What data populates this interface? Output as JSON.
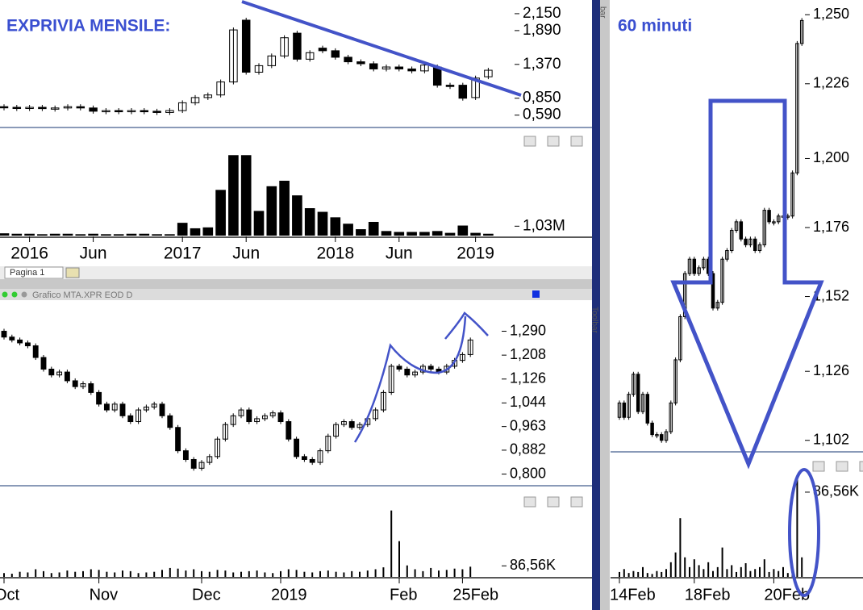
{
  "ui": {
    "tab": "Pagina 1",
    "toolbar_top": "bar",
    "toolbar_side": "Toolbar"
  },
  "chart_data": [
    {
      "type": "candlestick",
      "title": "EXPRIVIA MENSILE:",
      "open": [
        0.72,
        0.71,
        0.7,
        0.71,
        0.69,
        0.7,
        0.72,
        0.7,
        0.65,
        0.66,
        0.65,
        0.66,
        0.65,
        0.63,
        0.66,
        0.78,
        0.86,
        0.9,
        1.1,
        2.05,
        1.25,
        1.35,
        1.5,
        1.85,
        1.45,
        1.62,
        1.58,
        1.48,
        1.41,
        1.38,
        1.3,
        1.33,
        1.3,
        1.27,
        1.33,
        1.05,
        1.05,
        0.86,
        1.18
      ],
      "close": [
        0.71,
        0.7,
        0.71,
        0.69,
        0.7,
        0.72,
        0.7,
        0.65,
        0.66,
        0.65,
        0.66,
        0.65,
        0.63,
        0.66,
        0.78,
        0.86,
        0.9,
        1.1,
        1.9,
        1.25,
        1.35,
        1.5,
        1.78,
        1.45,
        1.55,
        1.58,
        1.48,
        1.41,
        1.38,
        1.3,
        1.33,
        1.3,
        1.27,
        1.36,
        1.05,
        1.03,
        0.85,
        1.16,
        1.28
      ],
      "ylim": [
        0.4,
        2.36
      ],
      "yticks": [
        {
          "value": 2.15,
          "label": "2,150"
        },
        {
          "value": 1.89,
          "label": "1,890"
        },
        {
          "value": 1.37,
          "label": "1,370"
        },
        {
          "value": 0.85,
          "label": "0,850"
        },
        {
          "value": 0.59,
          "label": "0,590"
        }
      ],
      "xticks": [
        {
          "value": 2,
          "label": "2016"
        },
        {
          "value": 7,
          "label": "Jun"
        },
        {
          "value": 14,
          "label": "2017"
        },
        {
          "value": 19,
          "label": "Jun"
        },
        {
          "value": 26,
          "label": "2018"
        },
        {
          "value": 31,
          "label": "Jun"
        },
        {
          "value": 37,
          "label": "2019"
        }
      ],
      "volume": {
        "values": [
          0.25,
          0.2,
          0.2,
          0.15,
          0.2,
          0.2,
          0.15,
          0.2,
          0.15,
          0.15,
          0.2,
          0.2,
          0.15,
          0.15,
          1.4,
          0.8,
          0.9,
          5.0,
          8.8,
          8.8,
          2.7,
          5.4,
          6.0,
          4.4,
          3.0,
          2.6,
          2.0,
          1.3,
          0.7,
          1.5,
          0.5,
          0.4,
          0.4,
          0.4,
          0.5,
          0.3,
          1.1,
          0.3,
          0.2
        ],
        "ylim": [
          0,
          9
        ],
        "yticks": [
          {
            "value": 1.03,
            "label": "1,03M"
          }
        ]
      }
    },
    {
      "type": "candlestick",
      "window_title": "Grafico MTA.XPR EOD D",
      "open": [
        1.29,
        1.27,
        1.26,
        1.25,
        1.24,
        1.2,
        1.16,
        1.14,
        1.15,
        1.12,
        1.1,
        1.11,
        1.08,
        1.04,
        1.02,
        1.04,
        1.0,
        0.98,
        1.02,
        1.03,
        1.04,
        1.0,
        0.96,
        0.88,
        0.85,
        0.82,
        0.84,
        0.86,
        0.92,
        0.97,
        1.0,
        1.02,
        0.98,
        0.99,
        1.0,
        1.01,
        0.98,
        0.92,
        0.86,
        0.85,
        0.84,
        0.88,
        0.93,
        0.97,
        0.98,
        0.96,
        0.97,
        0.99,
        1.02,
        1.08,
        1.17,
        1.16,
        1.14,
        1.15,
        1.17,
        1.16,
        1.15,
        1.17,
        1.19,
        1.21
      ],
      "close": [
        1.27,
        1.26,
        1.25,
        1.24,
        1.2,
        1.16,
        1.14,
        1.15,
        1.12,
        1.1,
        1.11,
        1.08,
        1.04,
        1.02,
        1.04,
        1.0,
        0.98,
        1.02,
        1.03,
        1.04,
        1.0,
        0.96,
        0.88,
        0.85,
        0.82,
        0.84,
        0.86,
        0.92,
        0.97,
        1.0,
        1.02,
        0.98,
        0.99,
        1.0,
        1.01,
        0.98,
        0.92,
        0.86,
        0.85,
        0.84,
        0.88,
        0.93,
        0.97,
        0.98,
        0.96,
        0.97,
        0.99,
        1.02,
        1.08,
        1.17,
        1.16,
        1.14,
        1.15,
        1.17,
        1.16,
        1.15,
        1.17,
        1.19,
        1.21,
        1.26
      ],
      "ylim": [
        0.76,
        1.38
      ],
      "yticks": [
        {
          "value": 1.29,
          "label": "1,290"
        },
        {
          "value": 1.208,
          "label": "1,208"
        },
        {
          "value": 1.126,
          "label": "1,126"
        },
        {
          "value": 1.044,
          "label": "1,044"
        },
        {
          "value": 0.963,
          "label": "0,963"
        },
        {
          "value": 0.882,
          "label": "0,882"
        },
        {
          "value": 0.8,
          "label": "0,800"
        }
      ],
      "xticks": [
        {
          "value": 0,
          "label": "Oct"
        },
        {
          "value": 12,
          "label": "Nov"
        },
        {
          "value": 25,
          "label": "Dec"
        },
        {
          "value": 35,
          "label": "2019"
        },
        {
          "value": 50,
          "label": "Feb"
        },
        {
          "value": 58,
          "label": "25Feb"
        }
      ],
      "volume": {
        "values": [
          30,
          25,
          40,
          35,
          60,
          45,
          30,
          35,
          50,
          40,
          45,
          60,
          55,
          40,
          35,
          50,
          45,
          30,
          35,
          40,
          55,
          70,
          65,
          50,
          60,
          45,
          40,
          55,
          50,
          35,
          40,
          45,
          50,
          35,
          30,
          45,
          60,
          55,
          40,
          35,
          45,
          50,
          40,
          35,
          45,
          40,
          50,
          60,
          75,
          520,
          280,
          90,
          60,
          45,
          70,
          50,
          55,
          65,
          60,
          80
        ],
        "ylim": [
          0,
          600
        ],
        "yticks": [
          {
            "value": 86.56,
            "label": "86,56K"
          }
        ]
      }
    },
    {
      "type": "candlestick",
      "title": "60 minuti",
      "open": [
        1.11,
        1.115,
        1.11,
        1.118,
        1.125,
        1.112,
        1.118,
        1.108,
        1.104,
        1.104,
        1.102,
        1.105,
        1.115,
        1.13,
        1.145,
        1.16,
        1.165,
        1.16,
        1.162,
        1.165,
        1.16,
        1.148,
        1.15,
        1.165,
        1.168,
        1.175,
        1.178,
        1.172,
        1.17,
        1.172,
        1.168,
        1.17,
        1.182,
        1.178,
        1.178,
        1.18,
        1.18,
        1.18,
        1.195,
        1.24
      ],
      "close": [
        1.115,
        1.11,
        1.118,
        1.125,
        1.112,
        1.118,
        1.108,
        1.104,
        1.104,
        1.102,
        1.105,
        1.115,
        1.13,
        1.145,
        1.16,
        1.165,
        1.16,
        1.162,
        1.165,
        1.16,
        1.148,
        1.15,
        1.165,
        1.168,
        1.175,
        1.178,
        1.172,
        1.17,
        1.172,
        1.168,
        1.17,
        1.182,
        1.178,
        1.178,
        1.18,
        1.18,
        1.18,
        1.195,
        1.24,
        1.248
      ],
      "ylim": [
        1.098,
        1.254
      ],
      "yticks": [
        {
          "value": 1.25,
          "label": "1,250"
        },
        {
          "value": 1.226,
          "label": "1,226"
        },
        {
          "value": 1.2,
          "label": "1,200"
        },
        {
          "value": 1.176,
          "label": "1,176"
        },
        {
          "value": 1.152,
          "label": "1,152"
        },
        {
          "value": 1.126,
          "label": "1,126"
        },
        {
          "value": 1.102,
          "label": "1,102"
        }
      ],
      "xticks": [
        {
          "value": 0,
          "label": "14Feb"
        },
        {
          "value": 16,
          "label": "18Feb"
        },
        {
          "value": 33,
          "label": "20Feb"
        }
      ],
      "volume": {
        "values": [
          5,
          8,
          4,
          6,
          5,
          10,
          4,
          3,
          6,
          5,
          8,
          15,
          25,
          60,
          20,
          10,
          18,
          12,
          8,
          15,
          6,
          10,
          30,
          8,
          12,
          5,
          10,
          14,
          6,
          8,
          10,
          18,
          5,
          8,
          6,
          10,
          4,
          6,
          100,
          20
        ],
        "ylim": [
          0,
          103
        ],
        "yticks": [
          {
            "value": 86.56,
            "label": "86,56K"
          }
        ]
      }
    }
  ]
}
